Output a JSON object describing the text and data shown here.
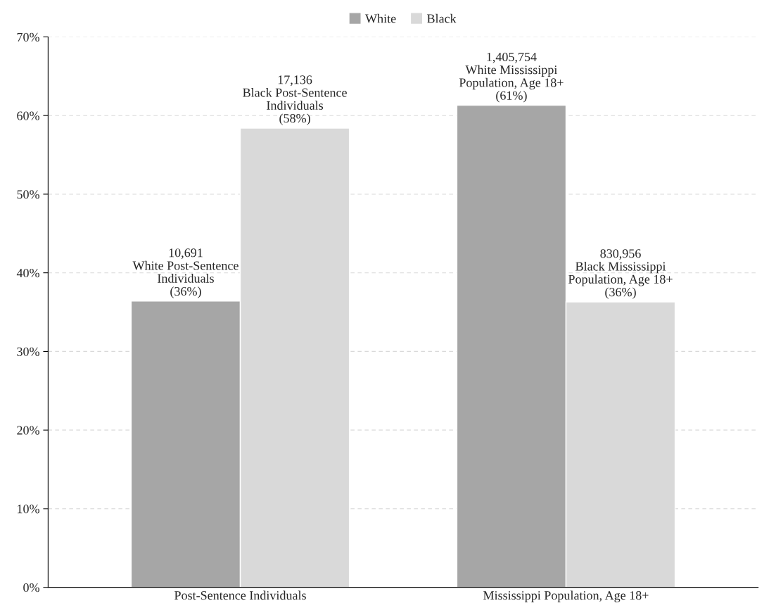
{
  "chart_data": {
    "type": "bar",
    "categories": [
      "Post-Sentence Individuals",
      "Mississippi Population, Age 18+"
    ],
    "series": [
      {
        "name": "White",
        "color": "#a6a6a6",
        "values": [
          36.4,
          61.3
        ],
        "value_labels": [
          "10,691\nWhite Post-Sentence\nIndividuals\n(36%)",
          "1,405,754\nWhite Mississippi\nPopulation, Age 18+\n(61%)"
        ]
      },
      {
        "name": "Black",
        "color": "#d9d9d9",
        "values": [
          58.4,
          36.3
        ],
        "value_labels": [
          "17,136\nBlack Post-Sentence\nIndividuals\n(58%)",
          "830,956\nBlack Mississippi\nPopulation, Age 18+\n(36%)"
        ]
      }
    ],
    "ylim": [
      0,
      70
    ],
    "yticks": [
      {
        "value": 0,
        "label": "0%"
      },
      {
        "value": 10,
        "label": "10%"
      },
      {
        "value": 20,
        "label": "20%"
      },
      {
        "value": 30,
        "label": "30%"
      },
      {
        "value": 40,
        "label": "40%"
      },
      {
        "value": 50,
        "label": "50%"
      },
      {
        "value": 60,
        "label": "60%"
      },
      {
        "value": 70,
        "label": "70%"
      }
    ],
    "grid": "y",
    "legend": "top"
  }
}
